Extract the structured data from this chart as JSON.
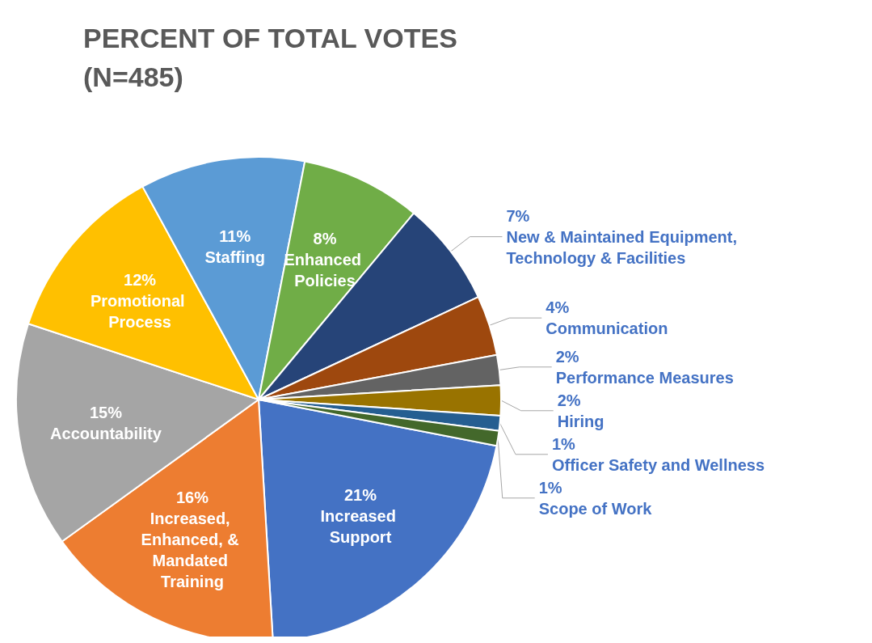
{
  "chart_data": {
    "type": "pie",
    "title": "PERCENT OF TOTAL VOTES\n(N=485)",
    "categories": [
      "Increased Support",
      "Increased, Enhanced, & Mandated Training",
      "Accountability",
      "Promotional Process",
      "Staffing",
      "Enhanced Policies",
      "New & Maintained Equipment, Technology & Facilities",
      "Communication",
      "Performance Measures",
      "Hiring",
      "Officer Safety and Wellness",
      "Scope of Work"
    ],
    "values": [
      21,
      16,
      15,
      12,
      11,
      8,
      7,
      4,
      2,
      2,
      1,
      1
    ],
    "value_labels": [
      "21%",
      "16%",
      "15%",
      "12%",
      "11%",
      "8%",
      "7%",
      "4%",
      "2%",
      "2%",
      "1%",
      "1%"
    ],
    "colors": [
      "#4472c4",
      "#ed7d31",
      "#a5a5a5",
      "#ffc000",
      "#5b9bd5",
      "#70ad47",
      "#264478",
      "#9e480e",
      "#636363",
      "#997300",
      "#255e91",
      "#43682b"
    ],
    "legend": false
  }
}
